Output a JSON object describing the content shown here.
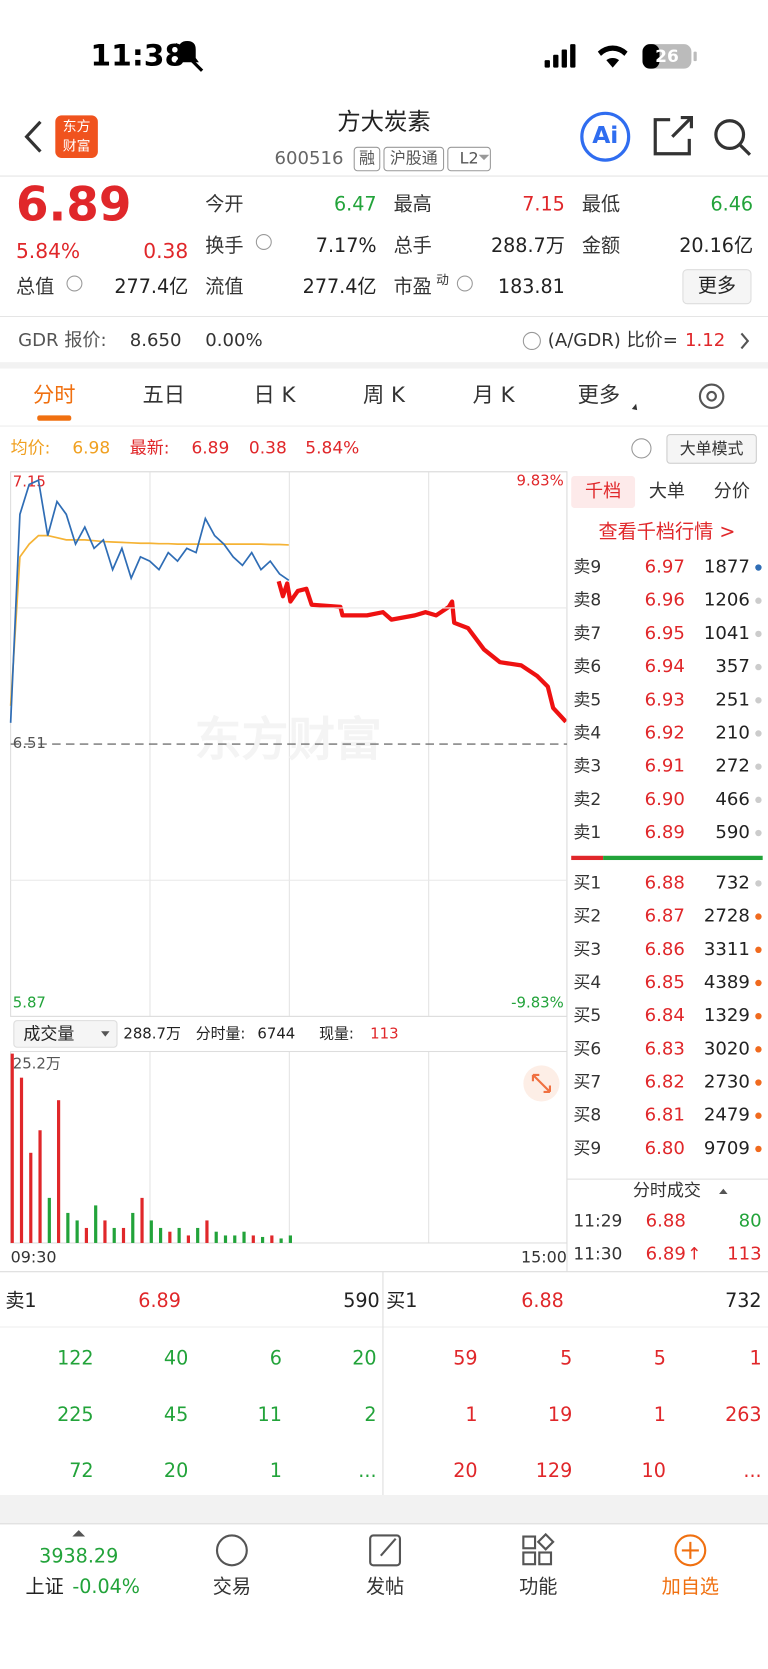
{
  "status_bar": {
    "time": "11:38",
    "battery": "26"
  },
  "header": {
    "logo": [
      "东方",
      "财富"
    ],
    "title": "方大炭素",
    "code": "600516",
    "badges": [
      "融",
      "沪股通",
      "L2"
    ],
    "ai": "Ai"
  },
  "quote": {
    "price": "6.89",
    "change_pct": "5.84%",
    "change": "0.38",
    "stats": [
      {
        "label": "今开",
        "value": "6.47"
      },
      {
        "label": "最高",
        "value": "7.15"
      },
      {
        "label": "最低",
        "value": "6.46"
      },
      {
        "label": "换手",
        "value": "7.17%"
      },
      {
        "label": "总手",
        "value": "288.7万"
      },
      {
        "label": "金额",
        "value": "20.16亿"
      },
      {
        "label": "总值",
        "value": "277.4亿"
      },
      {
        "label": "流值",
        "value": "277.4亿"
      }
    ],
    "pe_label": "市盈",
    "pe_sup": "动",
    "pe": "183.81",
    "more": "更多"
  },
  "gdr": {
    "label": "GDR 报价:",
    "price": "8.650",
    "pct": "0.00%",
    "ratio_label": "(A/GDR) 比价=",
    "ratio": "1.12"
  },
  "tabs": [
    "分时",
    "五日",
    "日 K",
    "周 K",
    "月 K",
    "更多"
  ],
  "chart_info": {
    "avg": "6.98",
    "latest": "6.89",
    "change": "0.38",
    "pct": "5.84%",
    "mode": "大单模式"
  },
  "chart_data": {
    "type": "line",
    "x": [
      0,
      4,
      8,
      12,
      16,
      20,
      24,
      28,
      32,
      36,
      40,
      44,
      48,
      52,
      56,
      60,
      64,
      68,
      72,
      76,
      80,
      84,
      88,
      92,
      96,
      100,
      104,
      108,
      112,
      116,
      120
    ],
    "xlim": [
      0,
      240
    ],
    "ylim": [
      5.87,
      7.15
    ],
    "yticks": [
      5.87,
      6.51,
      7.15
    ],
    "pct_top": "9.83%",
    "pct_bottom": "-9.83%",
    "watermark": "东方财富",
    "time_labels": [
      "09:30",
      "15:00"
    ],
    "series": [
      {
        "name": "最新:",
        "color": "#2f6db5",
        "values": [
          6.56,
          7.05,
          7.12,
          7.13,
          7.0,
          7.08,
          7.05,
          6.98,
          7.02,
          6.97,
          6.99,
          6.92,
          6.97,
          6.9,
          6.95,
          6.94,
          6.92,
          6.96,
          6.94,
          6.97,
          6.96,
          7.04,
          7.0,
          6.98,
          6.95,
          6.93,
          6.96,
          6.92,
          6.94,
          6.91,
          6.895
        ]
      },
      {
        "name": "均价:",
        "color": "#f5b335",
        "values": [
          6.6,
          6.95,
          6.98,
          7.0,
          7.0,
          6.995,
          6.99,
          6.99,
          6.99,
          6.988,
          6.986,
          6.985,
          6.984,
          6.983,
          6.982,
          6.982,
          6.981,
          6.981,
          6.98,
          6.98,
          6.98,
          6.98,
          6.98,
          6.98,
          6.98,
          6.98,
          6.98,
          6.98,
          6.979,
          6.979,
          6.978
        ]
      }
    ]
  },
  "volume": {
    "selector": "成交量",
    "total": "288.7万",
    "minute_label": "分时量:",
    "minute": "6744",
    "now_label": "现量:",
    "now": "113",
    "max_label": "25.2万",
    "ylim": [
      0,
      25.2
    ],
    "values": [
      25.2,
      22,
      12,
      15,
      6,
      19,
      4,
      3,
      2,
      5,
      3,
      2,
      2,
      4,
      6,
      3,
      2,
      1.5,
      2,
      1,
      2,
      3,
      1.5,
      1,
      1,
      1.5,
      1,
      0.8,
      1,
      0.6,
      1
    ]
  },
  "order_book": {
    "tabs": [
      "千档",
      "大单",
      "分价"
    ],
    "link": "查看千档行情 >",
    "asks": [
      {
        "label": "卖9",
        "price": "6.97",
        "volume": "1877"
      },
      {
        "label": "卖8",
        "price": "6.96",
        "volume": "1206"
      },
      {
        "label": "卖7",
        "price": "6.95",
        "volume": "1041"
      },
      {
        "label": "卖6",
        "price": "6.94",
        "volume": "357"
      },
      {
        "label": "卖5",
        "price": "6.93",
        "volume": "251"
      },
      {
        "label": "卖4",
        "price": "6.92",
        "volume": "210"
      },
      {
        "label": "卖3",
        "price": "6.91",
        "volume": "272"
      },
      {
        "label": "卖2",
        "price": "6.90",
        "volume": "466"
      },
      {
        "label": "卖1",
        "price": "6.89",
        "volume": "590"
      }
    ],
    "bids": [
      {
        "label": "买1",
        "price": "6.88",
        "volume": "732"
      },
      {
        "label": "买2",
        "price": "6.87",
        "volume": "2728"
      },
      {
        "label": "买3",
        "price": "6.86",
        "volume": "3311"
      },
      {
        "label": "买4",
        "price": "6.85",
        "volume": "4389"
      },
      {
        "label": "买5",
        "price": "6.84",
        "volume": "1329"
      },
      {
        "label": "买6",
        "price": "6.83",
        "volume": "3020"
      },
      {
        "label": "买7",
        "price": "6.82",
        "volume": "2730"
      },
      {
        "label": "买8",
        "price": "6.81",
        "volume": "2479"
      },
      {
        "label": "买9",
        "price": "6.80",
        "volume": "9709"
      }
    ],
    "ticks_title": "分时成交",
    "ticks": [
      {
        "time": "11:29",
        "price": "6.88",
        "volume": "80"
      },
      {
        "time": "11:30",
        "price": "6.89",
        "arrow": "↑",
        "volume": "113"
      }
    ]
  },
  "queue": {
    "ask": {
      "label": "卖1",
      "price": "6.89",
      "volume": "590",
      "orders": [
        [
          "122",
          "40",
          "6",
          "20"
        ],
        [
          "225",
          "45",
          "11",
          "2"
        ],
        [
          "72",
          "20",
          "1",
          "..."
        ]
      ]
    },
    "bid": {
      "label": "买1",
      "price": "6.88",
      "volume": "732",
      "orders": [
        [
          "59",
          "5",
          "5",
          "1"
        ],
        [
          "1",
          "19",
          "1",
          "263"
        ],
        [
          "20",
          "129",
          "10",
          "..."
        ]
      ]
    }
  },
  "bottom_nav": {
    "index_value": "3938.29",
    "index_name": "上证",
    "index_pct": "-0.04%",
    "items": [
      "交易",
      "发帖",
      "功能",
      "加自选"
    ]
  }
}
